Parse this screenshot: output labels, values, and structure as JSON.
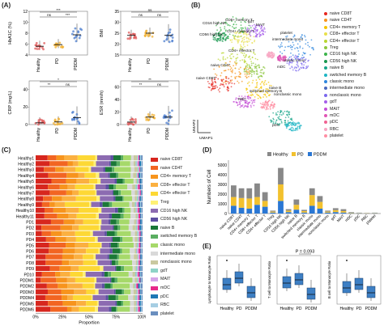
{
  "panels": {
    "A": {
      "label": "(A)",
      "groups": [
        "Healthy",
        "PD",
        "PDDM"
      ],
      "subplots": [
        {
          "ylabel": "HbA1C (%)",
          "yticks": [
            "4",
            "6",
            "8",
            "10",
            "12"
          ],
          "ylim": [
            4,
            12
          ],
          "signif": [
            "***",
            "ns",
            "***"
          ],
          "medians": [
            5.6,
            5.9,
            7.7
          ],
          "colors": [
            "#e05a5a",
            "#f2b134",
            "#4d7fd0"
          ]
        },
        {
          "ylabel": "BMI",
          "yticks": [
            "15",
            "20",
            "25",
            "30",
            "35"
          ],
          "ylim": [
            15,
            35
          ],
          "signif": [
            "ns",
            "ns",
            "ns"
          ],
          "medians": [
            24,
            25,
            24
          ],
          "colors": [
            "#e05a5a",
            "#f2b134",
            "#4d7fd0"
          ]
        },
        {
          "ylabel": "CRP (mg/L)",
          "yticks": [
            "0",
            "20",
            "40"
          ],
          "ylim": [
            0,
            50
          ],
          "signif": [
            "*",
            "**",
            "ns"
          ],
          "medians": [
            2,
            3,
            8
          ],
          "colors": [
            "#e05a5a",
            "#f2b134",
            "#4d7fd0"
          ]
        },
        {
          "ylabel": "ESR (mm/h)",
          "yticks": [
            "0",
            "20",
            "40",
            "60"
          ],
          "ylim": [
            0,
            70
          ],
          "signif": [
            "**",
            "**",
            "ns"
          ],
          "medians": [
            4,
            12,
            12
          ],
          "colors": [
            "#e05a5a",
            "#f2b134",
            "#4d7fd0"
          ]
        }
      ]
    },
    "B": {
      "label": "(B)",
      "axis_x": "UMAP1",
      "axis_y": "UMAP2",
      "cluster_labels": [
        "CD16 high NK",
        "CD56 high NK",
        "CD8+ memory T",
        "CD4+ memory T",
        "gdT",
        "MAIT",
        "CD4+ effector T",
        "naive CD4T",
        "naive CD8T",
        "naive B",
        "switched memory B",
        "RBC",
        "platelet",
        "intermediate mono",
        "classic mono",
        "mDC",
        "nonclassic mono",
        "pDC"
      ],
      "legend": [
        {
          "name": "naive CD8T",
          "color": "#e6261f"
        },
        {
          "name": "naive CD4T",
          "color": "#f7941d"
        },
        {
          "name": "CD4+ memory T",
          "color": "#f5c400"
        },
        {
          "name": "CD8+ effector T",
          "color": "#e8e04a"
        },
        {
          "name": "CD4+ effector T",
          "color": "#b9d531"
        },
        {
          "name": "Treg",
          "color": "#8dc63f"
        },
        {
          "name": "CD16 high NK",
          "color": "#3cb44b"
        },
        {
          "name": "CD56 high NK",
          "color": "#1a9850"
        },
        {
          "name": "naive B",
          "color": "#17a589"
        },
        {
          "name": "switched memory B",
          "color": "#1fb5c4"
        },
        {
          "name": "classic mono",
          "color": "#2e86de"
        },
        {
          "name": "intermediate mono",
          "color": "#4a69bd"
        },
        {
          "name": "nonclassic mono",
          "color": "#7b68ee"
        },
        {
          "name": "gdT",
          "color": "#a55eea"
        },
        {
          "name": "MAIT",
          "color": "#c44dd6"
        },
        {
          "name": "mDC",
          "color": "#e056b5"
        },
        {
          "name": "pDC",
          "color": "#f06292"
        },
        {
          "name": "RBC",
          "color": "#f8a5c2"
        },
        {
          "name": "platelet",
          "color": "#ff8fa3"
        }
      ]
    },
    "C": {
      "label": "(C)",
      "xlabel": "Proportion",
      "xticks": [
        "0%",
        "25%",
        "50%",
        "75%",
        "100%"
      ],
      "samples": [
        "Healthy1",
        "Healthy2",
        "Healthy3",
        "Healthy4",
        "Healthy5",
        "Healthy6",
        "Healthy7",
        "Healthy8",
        "Healthy9",
        "Healthy10",
        "Healthy11",
        "PD1",
        "PD2",
        "PD3",
        "PD4",
        "PD5",
        "PD6",
        "PD7",
        "PD8",
        "PD9",
        "PD10",
        "PDDM1",
        "PDDM2",
        "PDDM3",
        "PDDM4",
        "PDDM5",
        "PDDM6"
      ],
      "legend": [
        {
          "name": "naive CD8T",
          "color": "#d7261e"
        },
        {
          "name": "naive CD4T",
          "color": "#f26522"
        },
        {
          "name": "CD4+ memory T",
          "color": "#f7941d"
        },
        {
          "name": "CD8+ effector T",
          "color": "#fbb040"
        },
        {
          "name": "CD4+ effector T",
          "color": "#fdd835"
        },
        {
          "name": "Treg",
          "color": "#fff176"
        },
        {
          "name": "CD16 high NK",
          "color": "#8c6bb1"
        },
        {
          "name": "CD56 high NK",
          "color": "#5e4fa2"
        },
        {
          "name": "naive B",
          "color": "#1b7837"
        },
        {
          "name": "switched memory B",
          "color": "#5aae61"
        },
        {
          "name": "classic mono",
          "color": "#a6d96a"
        },
        {
          "name": "intermediate mono",
          "color": "#d9d9d9"
        },
        {
          "name": "nonclassic mono",
          "color": "#c9c9a0"
        },
        {
          "name": "gdT",
          "color": "#8dd3c7"
        },
        {
          "name": "MAIT",
          "color": "#d4a5e8"
        },
        {
          "name": "mDC",
          "color": "#e7298a"
        },
        {
          "name": "pDC",
          "color": "#1f78b4"
        },
        {
          "name": "RBC",
          "color": "#a6cee3"
        },
        {
          "name": "platelet",
          "color": "#6a8fbf"
        }
      ]
    },
    "D": {
      "label": "(D)",
      "ylabel": "Numbers of Cell",
      "yticks": [
        "0",
        "1000",
        "2000",
        "3000",
        "4000",
        "5000"
      ],
      "ylim": [
        0,
        5500
      ]
    },
    "E": {
      "label": "(E)",
      "subplots": [
        {
          "ylabel": "Lymphocyte to Monocyte Ratio",
          "annotation": ""
        },
        {
          "ylabel": "T cell to Monocyte Ratio",
          "annotation": "P = 0.093"
        },
        {
          "ylabel": "B cell to Monocyte Ratio",
          "annotation": ""
        }
      ],
      "groups": [
        "Healthy",
        "PD",
        "PDDM"
      ]
    }
  },
  "chart_data": [
    {
      "type": "scatter",
      "panel": "A",
      "title": "",
      "ylabel": "HbA1C (%)",
      "categories": [
        "Healthy",
        "PD",
        "PDDM"
      ],
      "values": [
        5.6,
        5.9,
        7.7
      ],
      "ylim": [
        4,
        12
      ]
    },
    {
      "type": "bar",
      "panel": "D",
      "title": "",
      "ylabel": "Numbers of Cell",
      "categories": [
        "naive CD8T",
        "naive CD4T",
        "CD4+ memory T",
        "CD8+ effector T",
        "CD4+ effector T",
        "Treg",
        "CD16 high NK",
        "CD56 high NK",
        "naive B",
        "switched memory B",
        "classic mono",
        "intermediate mono",
        "nonclassic mono",
        "gdT",
        "MAIT",
        "mDC",
        "pDC",
        "RBC",
        "platelet"
      ],
      "series": [
        {
          "name": "Healthy",
          "color": "#888888",
          "values": [
            1200,
            1000,
            1050,
            1400,
            900,
            100,
            1700,
            150,
            550,
            130,
            700,
            600,
            100,
            200,
            200,
            50,
            30,
            20,
            30
          ]
        },
        {
          "name": "PD",
          "color": "#f2c12e",
          "values": [
            900,
            1000,
            1050,
            800,
            600,
            100,
            1700,
            150,
            500,
            150,
            1100,
            700,
            100,
            200,
            150,
            50,
            30,
            20,
            30
          ]
        },
        {
          "name": "PDDM",
          "color": "#2a77d4",
          "values": [
            800,
            600,
            500,
            900,
            700,
            100,
            1300,
            150,
            400,
            100,
            800,
            500,
            100,
            150,
            100,
            40,
            30,
            20,
            30
          ]
        }
      ],
      "ylim": [
        0,
        5500
      ]
    }
  ]
}
